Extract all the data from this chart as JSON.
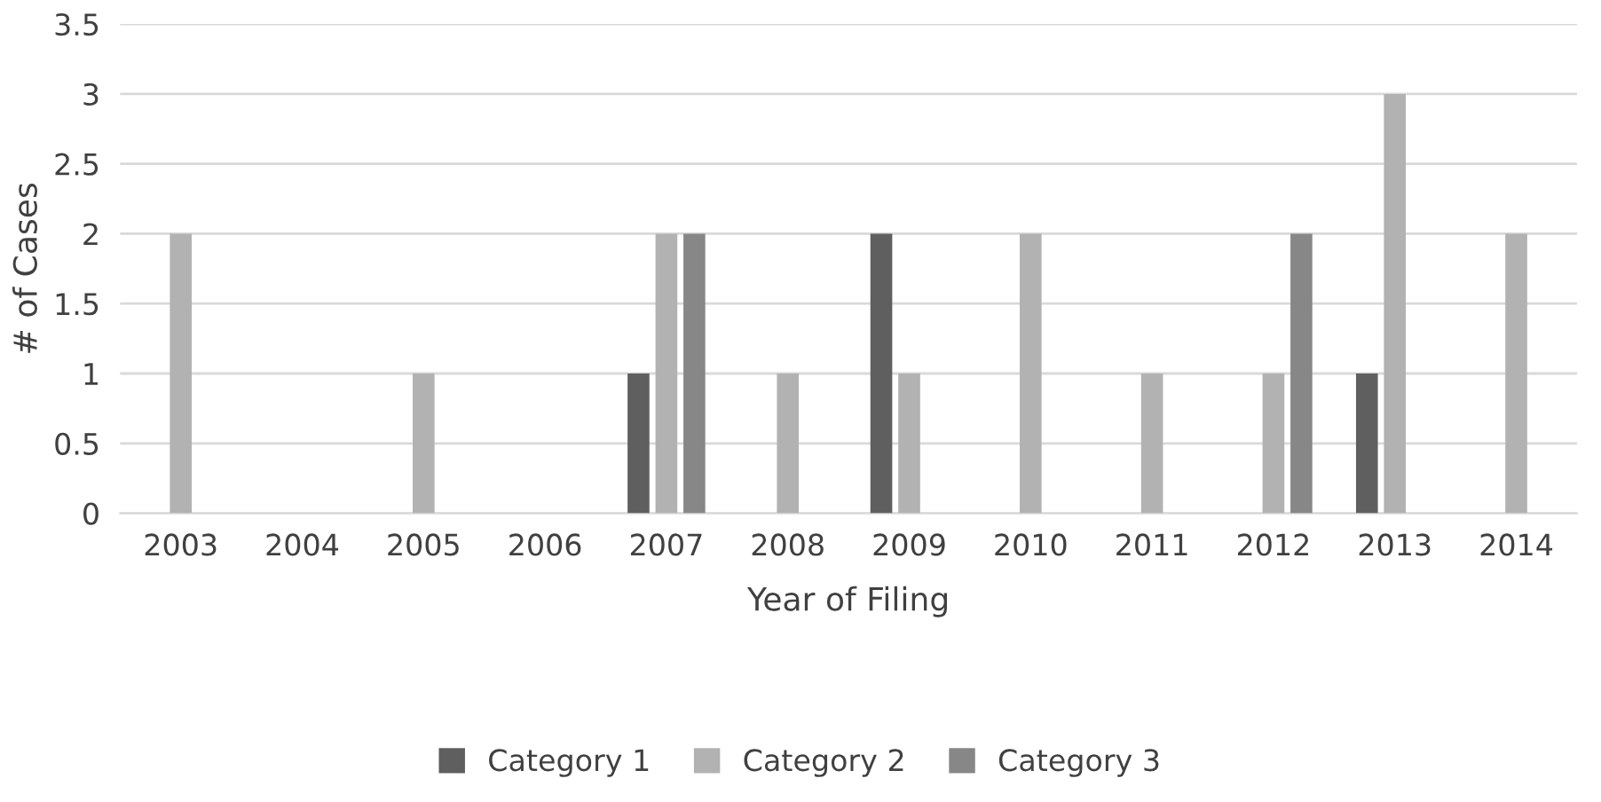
{
  "chart_data": {
    "type": "bar",
    "xlabel": "Year of Filing",
    "ylabel": "# of Cases",
    "categories": [
      "2003",
      "2004",
      "2005",
      "2006",
      "2007",
      "2008",
      "2009",
      "2010",
      "2011",
      "2012",
      "2013",
      "2014"
    ],
    "series": [
      {
        "name": "Category 1",
        "color": "#5f5f5f",
        "values": [
          null,
          null,
          null,
          null,
          1,
          null,
          2,
          null,
          null,
          null,
          1,
          null
        ]
      },
      {
        "name": "Category 2",
        "color": "#b2b2b2",
        "values": [
          2,
          null,
          1,
          null,
          2,
          1,
          1,
          2,
          1,
          1,
          3,
          2
        ]
      },
      {
        "name": "Category 3",
        "color": "#878787",
        "values": [
          null,
          null,
          null,
          null,
          2,
          null,
          null,
          null,
          null,
          2,
          null,
          null
        ]
      }
    ],
    "ylim": [
      0,
      3.5
    ],
    "yticks": [
      0,
      0.5,
      1,
      1.5,
      2,
      2.5,
      3,
      3.5
    ],
    "grid": "y",
    "legend": "bottom"
  }
}
